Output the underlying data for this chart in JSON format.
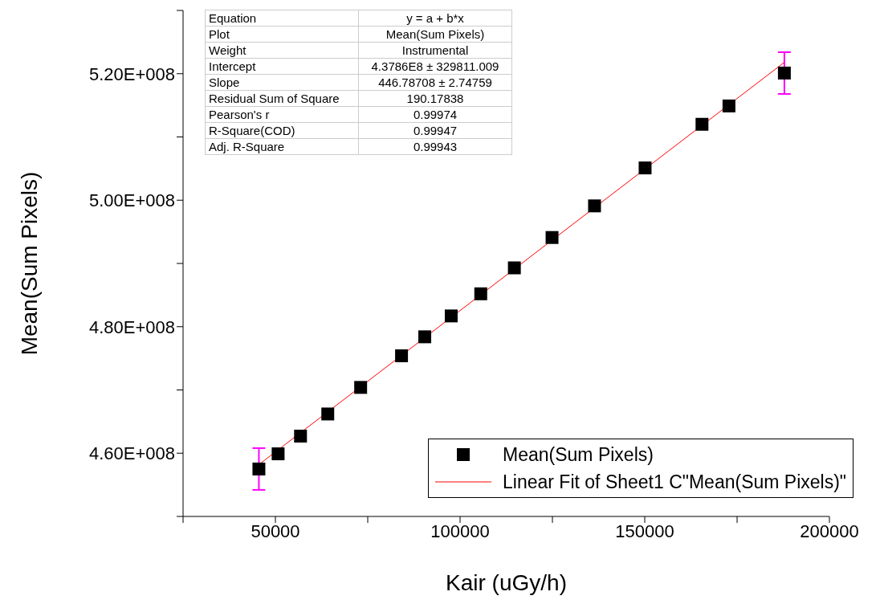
{
  "chart_data": {
    "type": "scatter",
    "xlabel": "Kair (uGy/h)",
    "ylabel": "Mean(Sum Pixels)",
    "xlim": [
      25000,
      200000
    ],
    "xticks": [
      {
        "value": 25000,
        "label": null
      },
      50000,
      {
        "value": 75000,
        "label": null
      },
      100000,
      {
        "value": 125000,
        "label": null
      },
      150000,
      {
        "value": 175000,
        "label": null
      },
      200000
    ],
    "ylim": [
      450000000,
      530000000
    ],
    "yticks": [
      {
        "value": 450000000,
        "label": null
      },
      {
        "value": 460000000,
        "label": "4.60E+008"
      },
      {
        "value": 470000000,
        "label": null
      },
      {
        "value": 480000000,
        "label": "4.80E+008"
      },
      {
        "value": 490000000,
        "label": null
      },
      {
        "value": 500000000,
        "label": "5.00E+008"
      },
      {
        "value": 510000000,
        "label": null
      },
      {
        "value": 520000000,
        "label": "5.20E+008"
      },
      {
        "value": 530000000,
        "label": null
      }
    ],
    "grid": false,
    "legend": "bottom right",
    "series": [
      {
        "name": "Mean(Sum Pixels)",
        "marker": "square",
        "color": "#000000",
        "x": [
          45530,
          50740,
          56800,
          64180,
          73080,
          84150,
          90440,
          97600,
          105600,
          114700,
          124900,
          136400,
          150100,
          165500,
          172800,
          187800
        ],
        "values": [
          457500000,
          459900000,
          462700000,
          466200000,
          470400000,
          475400000,
          478400000,
          481700000,
          485200000,
          489300000,
          494100000,
          499100000,
          505100000,
          512000000,
          514900000,
          520100000
        ],
        "errors": [
          3300000,
          null,
          null,
          null,
          null,
          null,
          null,
          null,
          null,
          null,
          null,
          null,
          null,
          null,
          null,
          3300000
        ]
      },
      {
        "name": "Linear Fit of Sheet1 C\"Mean(Sum Pixels)\"",
        "type": "line",
        "color": "#ff0000",
        "x": [
          45530,
          187800
        ],
        "values": [
          458200000,
          521800000
        ]
      }
    ],
    "annotations": [
      "Equation",
      "y = a + b*x",
      "Plot",
      "Mean(Sum Pixels)",
      "Weight",
      "Instrumental",
      "Intercept",
      "4.3786E8 ± 329811.009",
      "Slope",
      "446.78708 ± 2.74759",
      "Residual Sum of Square",
      "190.17838",
      "Pearson's r",
      "0.99974",
      "R-Square(COD)",
      "0.99947",
      "Adj. R-Square",
      "0.99943"
    ]
  }
}
